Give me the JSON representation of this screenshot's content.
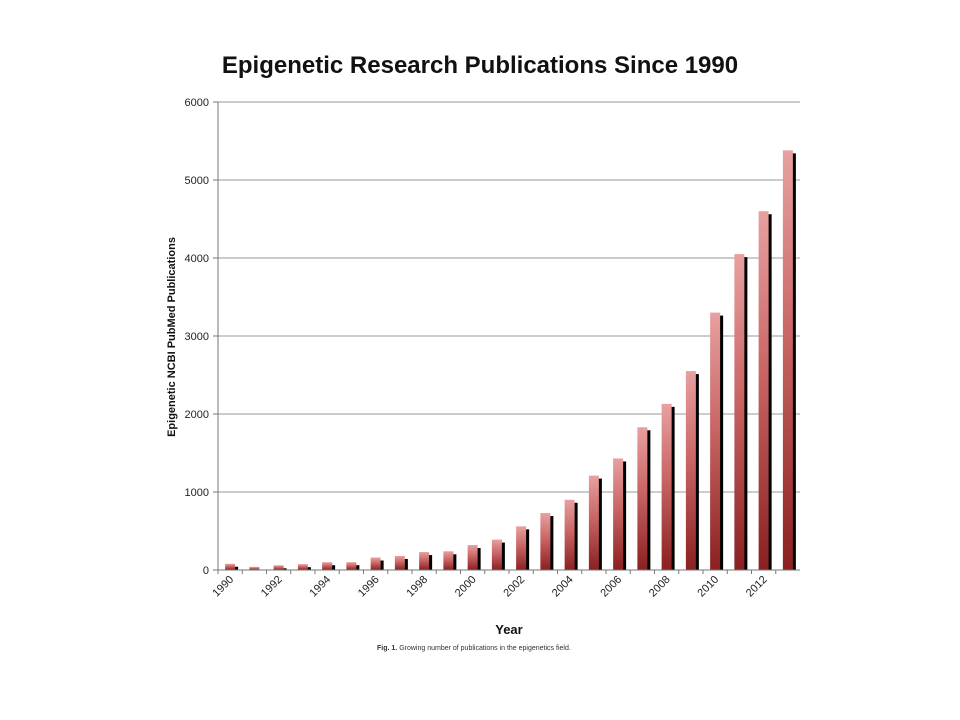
{
  "figure": {
    "caption_label": "Fig. 1.",
    "caption_text": "Growing number of publications in the epigenetics field."
  },
  "chart_data": {
    "type": "bar",
    "title": "Epigenetic Research Publications Since 1990",
    "xlabel": "Year",
    "ylabel": "Epigenetic NCBI PubMed Publications",
    "ylim": [
      0,
      6000
    ],
    "yticks": [
      0,
      1000,
      2000,
      3000,
      4000,
      5000,
      6000
    ],
    "x_tick_labels": [
      "1990",
      "1992",
      "1994",
      "1996",
      "1998",
      "2000",
      "2002",
      "2004",
      "2006",
      "2008",
      "2010",
      "2012"
    ],
    "categories": [
      "1990",
      "1991",
      "1992",
      "1993",
      "1994",
      "1995",
      "1996",
      "1997",
      "1998",
      "1999",
      "2000",
      "2001",
      "2002",
      "2003",
      "2004",
      "2005",
      "2006",
      "2007",
      "2008",
      "2009",
      "2010",
      "2011",
      "2012",
      "2013"
    ],
    "values": [
      80,
      40,
      60,
      75,
      100,
      100,
      160,
      180,
      230,
      240,
      320,
      390,
      560,
      730,
      900,
      1210,
      1430,
      1830,
      2130,
      2550,
      3300,
      4050,
      4600,
      5380
    ],
    "grid": true,
    "colors": {
      "bar_light": "#e8a0a0",
      "bar_mid": "#c96565",
      "bar_dark": "#8a2020",
      "bar_shadow": "#000000",
      "grid": "#9a9a9a"
    }
  }
}
